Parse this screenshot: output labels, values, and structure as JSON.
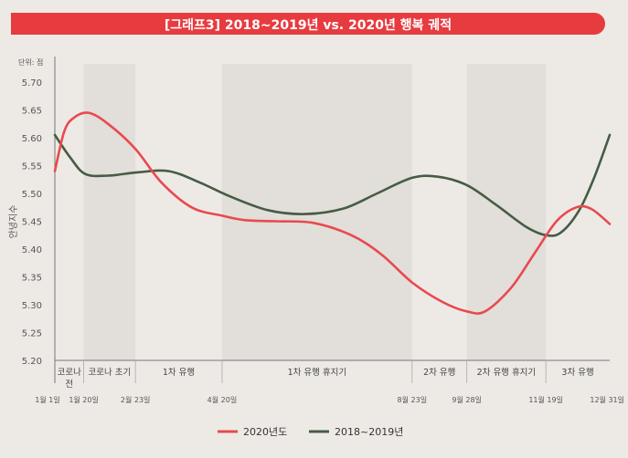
{
  "title": "[그래프3] 2018~2019년 vs. 2020년 행복 궤적",
  "colors": {
    "red": "#e84a4f",
    "green": "#465c43",
    "title_bg": "#e63c40"
  },
  "chart_data": {
    "type": "line",
    "title": "[그래프3] 2018~2019년 vs. 2020년 행복 궤적",
    "unit_label": "단위: 점",
    "ylabel": "안녕지수",
    "ylim": [
      5.2,
      5.7
    ],
    "yticks": [
      "5.70",
      "5.65",
      "5.60",
      "5.55",
      "5.50",
      "5.45",
      "5.40",
      "5.35",
      "5.30",
      "5.25",
      "5.20"
    ],
    "grid": false,
    "legend_position": "bottom-center",
    "xlim": [
      0,
      365
    ],
    "date_ticks": [
      {
        "label": "1월 1일",
        "day": 0
      },
      {
        "label": "1월 20일",
        "day": 19
      },
      {
        "label": "2월 23일",
        "day": 53
      },
      {
        "label": "4월 20일",
        "day": 110
      },
      {
        "label": "8월 23일",
        "day": 235
      },
      {
        "label": "9월 28일",
        "day": 271
      },
      {
        "label": "11월 19일",
        "day": 323
      },
      {
        "label": "12월 31일",
        "day": 365
      }
    ],
    "phases": [
      {
        "label": "코로나 전",
        "start": 0,
        "end": 19
      },
      {
        "label": "코로나 초기",
        "start": 19,
        "end": 53
      },
      {
        "label": "1차 유행",
        "start": 53,
        "end": 110
      },
      {
        "label": "1차 유행 휴지기",
        "start": 110,
        "end": 235
      },
      {
        "label": "2차 유행",
        "start": 235,
        "end": 271
      },
      {
        "label": "2차 유행 휴지기",
        "start": 271,
        "end": 323
      },
      {
        "label": "3차 유행",
        "start": 323,
        "end": 365
      }
    ],
    "series": [
      {
        "name": "2020년도",
        "color": "#e84a4f",
        "points": [
          [
            0,
            5.54
          ],
          [
            6,
            5.61
          ],
          [
            12,
            5.635
          ],
          [
            22,
            5.645
          ],
          [
            35,
            5.625
          ],
          [
            53,
            5.58
          ],
          [
            70,
            5.52
          ],
          [
            90,
            5.475
          ],
          [
            110,
            5.46
          ],
          [
            125,
            5.452
          ],
          [
            145,
            5.45
          ],
          [
            170,
            5.447
          ],
          [
            195,
            5.425
          ],
          [
            215,
            5.39
          ],
          [
            235,
            5.34
          ],
          [
            255,
            5.305
          ],
          [
            271,
            5.288
          ],
          [
            283,
            5.288
          ],
          [
            300,
            5.33
          ],
          [
            315,
            5.39
          ],
          [
            330,
            5.45
          ],
          [
            343,
            5.475
          ],
          [
            353,
            5.472
          ],
          [
            365,
            5.445
          ]
        ]
      },
      {
        "name": "2018~2019년",
        "color": "#465c43",
        "points": [
          [
            0,
            5.605
          ],
          [
            10,
            5.565
          ],
          [
            20,
            5.535
          ],
          [
            35,
            5.532
          ],
          [
            55,
            5.538
          ],
          [
            75,
            5.54
          ],
          [
            95,
            5.52
          ],
          [
            115,
            5.495
          ],
          [
            140,
            5.47
          ],
          [
            165,
            5.463
          ],
          [
            190,
            5.473
          ],
          [
            212,
            5.5
          ],
          [
            235,
            5.528
          ],
          [
            252,
            5.53
          ],
          [
            271,
            5.515
          ],
          [
            290,
            5.48
          ],
          [
            310,
            5.44
          ],
          [
            323,
            5.425
          ],
          [
            333,
            5.43
          ],
          [
            345,
            5.47
          ],
          [
            355,
            5.53
          ],
          [
            365,
            5.605
          ]
        ]
      }
    ]
  }
}
